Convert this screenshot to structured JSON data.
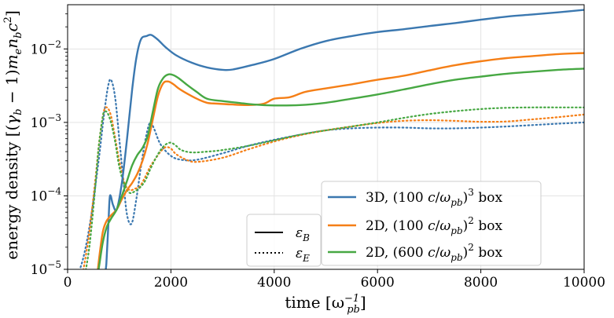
{
  "chart_data": {
    "type": "line",
    "title": "",
    "xlabel": "time [ω_pb^-1]",
    "ylabel": "energy density [(γ_b − 1) m_e n_b c^2]",
    "xlim": [
      0,
      10000
    ],
    "ylim": [
      1e-05,
      0.04
    ],
    "yscale": "log",
    "grid": true,
    "x_ticks": [
      0,
      2000,
      4000,
      6000,
      8000,
      10000
    ],
    "x_tick_labels": [
      "0",
      "2000",
      "4000",
      "6000",
      "8000",
      "10000"
    ],
    "y_ticks": [
      1e-05,
      0.0001,
      0.001,
      0.01
    ],
    "y_tick_labels": [
      {
        "base": "10",
        "exp": "−5"
      },
      {
        "base": "10",
        "exp": "−4"
      },
      {
        "base": "10",
        "exp": "−3"
      },
      {
        "base": "10",
        "exp": "−2"
      }
    ],
    "series": [
      {
        "name": "3D, (100 c/ω_pb)^3 box, ε_B",
        "color": "#3b78b0",
        "style": "solid",
        "points": [
          [
            720,
            8.5e-06
          ],
          [
            750,
            1.2e-05
          ],
          [
            790,
            4.2e-05
          ],
          [
            820,
            0.0001
          ],
          [
            880,
            7.5e-05
          ],
          [
            950,
            6.5e-05
          ],
          [
            1050,
            0.00015
          ],
          [
            1150,
            0.0006
          ],
          [
            1250,
            0.0028
          ],
          [
            1330,
            0.0075
          ],
          [
            1420,
            0.0135
          ],
          [
            1530,
            0.015
          ],
          [
            1620,
            0.0155
          ],
          [
            1750,
            0.0133
          ],
          [
            1900,
            0.0105
          ],
          [
            2100,
            0.0082
          ],
          [
            2400,
            0.0065
          ],
          [
            2700,
            0.0056
          ],
          [
            3000,
            0.0052
          ],
          [
            3200,
            0.00525
          ],
          [
            3600,
            0.0061
          ],
          [
            4000,
            0.0073
          ],
          [
            4500,
            0.01
          ],
          [
            5000,
            0.0128
          ],
          [
            5500,
            0.015
          ],
          [
            6000,
            0.017
          ],
          [
            6500,
            0.0185
          ],
          [
            7000,
            0.0205
          ],
          [
            7500,
            0.0225
          ],
          [
            8000,
            0.025
          ],
          [
            8500,
            0.0275
          ],
          [
            9000,
            0.0295
          ],
          [
            9500,
            0.0315
          ],
          [
            10000,
            0.034
          ]
        ]
      },
      {
        "name": "3D, (100 c/ω_pb)^3 box, ε_E",
        "color": "#3b78b0",
        "style": "dotted",
        "points": [
          [
            120,
            6e-06
          ],
          [
            300,
            1.4e-05
          ],
          [
            450,
            5e-05
          ],
          [
            600,
            0.0003
          ],
          [
            700,
            0.0012
          ],
          [
            780,
            0.003
          ],
          [
            840,
            0.0038
          ],
          [
            920,
            0.0022
          ],
          [
            1000,
            0.0006
          ],
          [
            1080,
            0.00016
          ],
          [
            1150,
            5.5e-05
          ],
          [
            1240,
            4.2e-05
          ],
          [
            1330,
            9e-05
          ],
          [
            1420,
            0.00025
          ],
          [
            1520,
            0.00065
          ],
          [
            1600,
            0.001
          ],
          [
            1680,
            0.0008
          ],
          [
            1800,
            0.0005
          ],
          [
            2000,
            0.00035
          ],
          [
            2200,
            0.00031
          ],
          [
            2500,
            0.00031
          ],
          [
            3000,
            0.00038
          ],
          [
            3500,
            0.00048
          ],
          [
            4000,
            0.00058
          ],
          [
            4500,
            0.00068
          ],
          [
            5000,
            0.00078
          ],
          [
            5500,
            0.00083
          ],
          [
            6000,
            0.00085
          ],
          [
            6500,
            0.00085
          ],
          [
            7000,
            0.00083
          ],
          [
            7500,
            0.00083
          ],
          [
            8000,
            0.00085
          ],
          [
            8500,
            0.00088
          ],
          [
            9000,
            0.00092
          ],
          [
            9500,
            0.00096
          ],
          [
            10000,
            0.001
          ]
        ]
      },
      {
        "name": "2D, (100 c/ω_pb)^2 box, ε_B",
        "color": "#f57f17",
        "style": "solid",
        "points": [
          [
            580,
            9e-06
          ],
          [
            620,
            1.6e-05
          ],
          [
            680,
            3.2e-05
          ],
          [
            750,
            4.5e-05
          ],
          [
            850,
            5.5e-05
          ],
          [
            950,
            6.5e-05
          ],
          [
            1050,
            9e-05
          ],
          [
            1150,
            0.00012
          ],
          [
            1250,
            0.00015
          ],
          [
            1350,
            0.0002
          ],
          [
            1450,
            0.0003
          ],
          [
            1550,
            0.00052
          ],
          [
            1650,
            0.0011
          ],
          [
            1750,
            0.0023
          ],
          [
            1850,
            0.0034
          ],
          [
            1950,
            0.0036
          ],
          [
            2050,
            0.0033
          ],
          [
            2150,
            0.0029
          ],
          [
            2300,
            0.0025
          ],
          [
            2500,
            0.0021
          ],
          [
            2700,
            0.00185
          ],
          [
            2900,
            0.0018
          ],
          [
            3200,
            0.00175
          ],
          [
            3500,
            0.00172
          ],
          [
            3800,
            0.0018
          ],
          [
            4000,
            0.0021
          ],
          [
            4300,
            0.0022
          ],
          [
            4600,
            0.0026
          ],
          [
            5000,
            0.0029
          ],
          [
            5500,
            0.0033
          ],
          [
            6000,
            0.0038
          ],
          [
            6500,
            0.0043
          ],
          [
            7000,
            0.0051
          ],
          [
            7500,
            0.006
          ],
          [
            8000,
            0.0068
          ],
          [
            8500,
            0.0075
          ],
          [
            9000,
            0.008
          ],
          [
            9500,
            0.0085
          ],
          [
            10000,
            0.0088
          ]
        ]
      },
      {
        "name": "2D, (100 c/ω_pb)^2 box, ε_E",
        "color": "#f57f17",
        "style": "dotted",
        "points": [
          [
            250,
            6e-06
          ],
          [
            400,
            2.5e-05
          ],
          [
            520,
            0.00013
          ],
          [
            620,
            0.0006
          ],
          [
            700,
            0.0014
          ],
          [
            760,
            0.0016
          ],
          [
            830,
            0.0013
          ],
          [
            900,
            0.00075
          ],
          [
            1000,
            0.0003
          ],
          [
            1100,
            0.00015
          ],
          [
            1200,
            0.00012
          ],
          [
            1300,
            0.000125
          ],
          [
            1400,
            0.000135
          ],
          [
            1500,
            0.00018
          ],
          [
            1600,
            0.00025
          ],
          [
            1700,
            0.00032
          ],
          [
            1800,
            0.0004
          ],
          [
            1900,
            0.00046
          ],
          [
            2000,
            0.00044
          ],
          [
            2100,
            0.00037
          ],
          [
            2300,
            0.00031
          ],
          [
            2500,
            0.00029
          ],
          [
            3000,
            0.00033
          ],
          [
            3500,
            0.00043
          ],
          [
            4000,
            0.00055
          ],
          [
            4500,
            0.00067
          ],
          [
            5000,
            0.00078
          ],
          [
            5500,
            0.00088
          ],
          [
            6000,
            0.00098
          ],
          [
            6500,
            0.00105
          ],
          [
            7000,
            0.00107
          ],
          [
            7500,
            0.00105
          ],
          [
            8000,
            0.00102
          ],
          [
            8500,
            0.00103
          ],
          [
            9000,
            0.0011
          ],
          [
            9500,
            0.00118
          ],
          [
            10000,
            0.00128
          ]
        ]
      },
      {
        "name": "2D, (600 c/ω_pb)^2 box, ε_B",
        "color": "#47a843",
        "style": "solid",
        "points": [
          [
            520,
            5e-06
          ],
          [
            600,
            1e-05
          ],
          [
            680,
            2.3e-05
          ],
          [
            760,
            3.8e-05
          ],
          [
            850,
            5e-05
          ],
          [
            950,
            6.5e-05
          ],
          [
            1050,
            0.0001
          ],
          [
            1150,
            0.00016
          ],
          [
            1250,
            0.00026
          ],
          [
            1350,
            0.00036
          ],
          [
            1450,
            0.00045
          ],
          [
            1550,
            0.00065
          ],
          [
            1650,
            0.0014
          ],
          [
            1750,
            0.0029
          ],
          [
            1850,
            0.004
          ],
          [
            1950,
            0.0045
          ],
          [
            2050,
            0.0044
          ],
          [
            2150,
            0.004
          ],
          [
            2300,
            0.0033
          ],
          [
            2500,
            0.0026
          ],
          [
            2700,
            0.0021
          ],
          [
            3000,
            0.00195
          ],
          [
            3300,
            0.00185
          ],
          [
            3600,
            0.00175
          ],
          [
            4000,
            0.0017
          ],
          [
            4500,
            0.00172
          ],
          [
            5000,
            0.00185
          ],
          [
            5500,
            0.0021
          ],
          [
            6000,
            0.0024
          ],
          [
            6500,
            0.0028
          ],
          [
            7000,
            0.0033
          ],
          [
            7500,
            0.0038
          ],
          [
            8000,
            0.0042
          ],
          [
            8500,
            0.0046
          ],
          [
            9000,
            0.0049
          ],
          [
            9500,
            0.0052
          ],
          [
            10000,
            0.0054
          ]
        ]
      },
      {
        "name": "2D, (600 c/ω_pb)^2 box, ε_E",
        "color": "#47a843",
        "style": "dotted",
        "points": [
          [
            300,
            6e-06
          ],
          [
            420,
            2e-05
          ],
          [
            520,
            0.0001
          ],
          [
            600,
            0.00045
          ],
          [
            680,
            0.0012
          ],
          [
            720,
            0.0014
          ],
          [
            770,
            0.00135
          ],
          [
            840,
            0.001
          ],
          [
            920,
            0.00055
          ],
          [
            1000,
            0.00025
          ],
          [
            1100,
            0.00014
          ],
          [
            1200,
            0.00011
          ],
          [
            1300,
            0.000115
          ],
          [
            1400,
            0.00013
          ],
          [
            1500,
            0.00016
          ],
          [
            1600,
            0.00023
          ],
          [
            1700,
            0.00032
          ],
          [
            1800,
            0.00042
          ],
          [
            1900,
            0.0005
          ],
          [
            2000,
            0.00053
          ],
          [
            2100,
            0.00048
          ],
          [
            2200,
            0.00042
          ],
          [
            2400,
            0.00039
          ],
          [
            2700,
            0.0004
          ],
          [
            3000,
            0.00042
          ],
          [
            3500,
            0.00048
          ],
          [
            4000,
            0.00057
          ],
          [
            4500,
            0.00068
          ],
          [
            5000,
            0.00078
          ],
          [
            5500,
            0.00088
          ],
          [
            6000,
            0.001
          ],
          [
            6500,
            0.00115
          ],
          [
            7000,
            0.0013
          ],
          [
            7500,
            0.00142
          ],
          [
            8000,
            0.00152
          ],
          [
            8500,
            0.00158
          ],
          [
            9000,
            0.0016
          ],
          [
            9500,
            0.0016
          ],
          [
            10000,
            0.0016
          ]
        ]
      }
    ],
    "legend_styles": {
      "position": "bottom-center",
      "entries": [
        {
          "label": "ε_B",
          "style": "solid"
        },
        {
          "label": "ε_E",
          "style": "dotted"
        }
      ]
    },
    "legend_runs": {
      "position": "bottom-right",
      "entries": [
        {
          "label": "3D, (100 c/ω_pb)^3 box",
          "color": "#3b78b0"
        },
        {
          "label": "2D, (100 c/ω_pb)^2 box",
          "color": "#f57f17"
        },
        {
          "label": "2D, (600 c/ω_pb)^2 box",
          "color": "#47a843"
        }
      ]
    }
  }
}
